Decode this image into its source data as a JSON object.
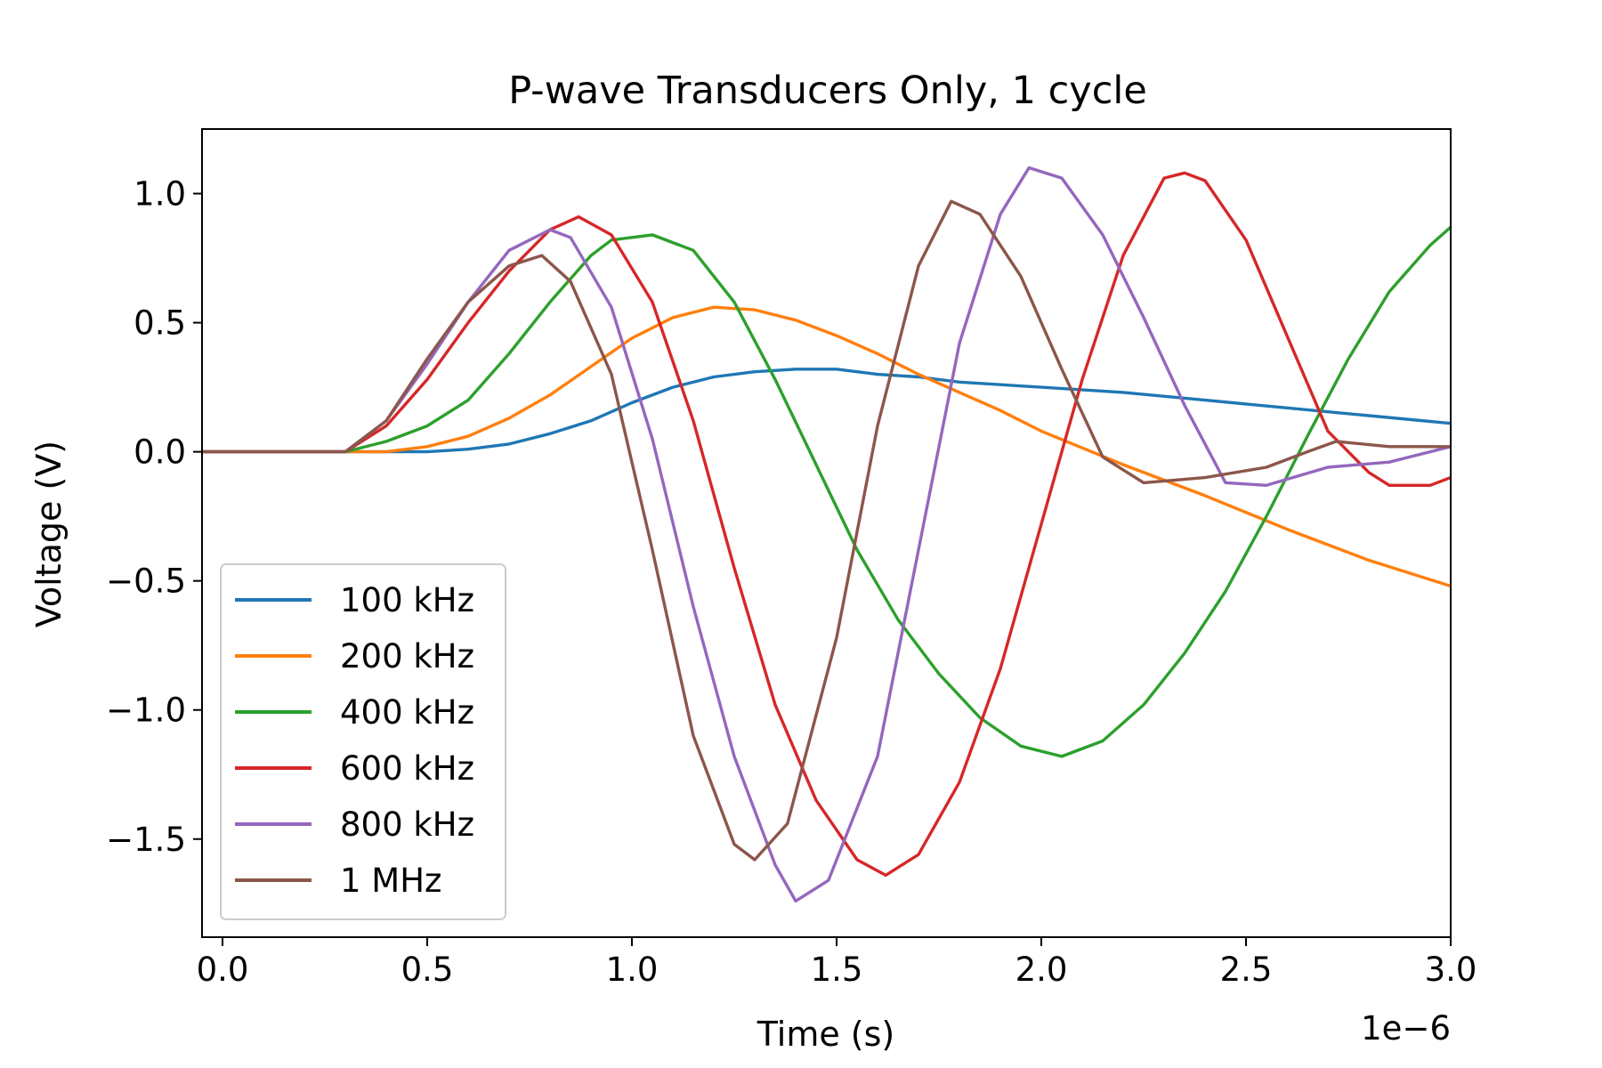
{
  "chart_data": {
    "type": "line",
    "title": "P-wave Transducers Only, 1 cycle",
    "xlabel": "Time (s)",
    "ylabel": "Voltage (V)",
    "x_offset_label": "1e−6",
    "xlim": [
      -0.05,
      3.0
    ],
    "ylim": [
      -1.88,
      1.25
    ],
    "x_ticks": [
      0.0,
      0.5,
      1.0,
      1.5,
      2.0,
      2.5,
      3.0
    ],
    "x_tick_labels": [
      "0.0",
      "0.5",
      "1.0",
      "1.5",
      "2.0",
      "2.5",
      "3.0"
    ],
    "y_ticks": [
      1.0,
      0.5,
      0.0,
      -0.5,
      -1.0,
      -1.5
    ],
    "y_tick_labels": [
      "1.0",
      "0.5",
      "0.0",
      "−0.5",
      "−1.0",
      "−1.5"
    ],
    "grid": false,
    "legend_position": "lower-left",
    "series": [
      {
        "name": "100 kHz",
        "color": "#1f77b4",
        "points": [
          [
            -0.05,
            0.0
          ],
          [
            0.5,
            0.0
          ],
          [
            0.6,
            0.01
          ],
          [
            0.7,
            0.03
          ],
          [
            0.8,
            0.07
          ],
          [
            0.9,
            0.12
          ],
          [
            1.0,
            0.19
          ],
          [
            1.1,
            0.25
          ],
          [
            1.2,
            0.29
          ],
          [
            1.3,
            0.31
          ],
          [
            1.4,
            0.32
          ],
          [
            1.5,
            0.32
          ],
          [
            1.6,
            0.3
          ],
          [
            1.7,
            0.29
          ],
          [
            1.8,
            0.27
          ],
          [
            2.0,
            0.25
          ],
          [
            2.2,
            0.23
          ],
          [
            2.4,
            0.2
          ],
          [
            2.6,
            0.17
          ],
          [
            2.8,
            0.14
          ],
          [
            3.0,
            0.11
          ]
        ]
      },
      {
        "name": "200 kHz",
        "color": "#ff7f0e",
        "points": [
          [
            -0.05,
            0.0
          ],
          [
            0.4,
            0.0
          ],
          [
            0.5,
            0.02
          ],
          [
            0.6,
            0.06
          ],
          [
            0.7,
            0.13
          ],
          [
            0.8,
            0.22
          ],
          [
            0.9,
            0.33
          ],
          [
            1.0,
            0.44
          ],
          [
            1.1,
            0.52
          ],
          [
            1.2,
            0.56
          ],
          [
            1.3,
            0.55
          ],
          [
            1.4,
            0.51
          ],
          [
            1.5,
            0.45
          ],
          [
            1.6,
            0.38
          ],
          [
            1.7,
            0.3
          ],
          [
            1.8,
            0.23
          ],
          [
            1.9,
            0.16
          ],
          [
            2.0,
            0.08
          ],
          [
            2.2,
            -0.05
          ],
          [
            2.4,
            -0.17
          ],
          [
            2.6,
            -0.3
          ],
          [
            2.8,
            -0.42
          ],
          [
            3.0,
            -0.52
          ]
        ]
      },
      {
        "name": "400 kHz",
        "color": "#2ca02c",
        "points": [
          [
            -0.05,
            0.0
          ],
          [
            0.3,
            0.0
          ],
          [
            0.4,
            0.04
          ],
          [
            0.5,
            0.1
          ],
          [
            0.6,
            0.2
          ],
          [
            0.7,
            0.38
          ],
          [
            0.8,
            0.58
          ],
          [
            0.9,
            0.76
          ],
          [
            0.95,
            0.82
          ],
          [
            1.05,
            0.84
          ],
          [
            1.15,
            0.78
          ],
          [
            1.25,
            0.58
          ],
          [
            1.35,
            0.28
          ],
          [
            1.45,
            -0.05
          ],
          [
            1.55,
            -0.38
          ],
          [
            1.65,
            -0.65
          ],
          [
            1.75,
            -0.86
          ],
          [
            1.85,
            -1.03
          ],
          [
            1.95,
            -1.14
          ],
          [
            2.05,
            -1.18
          ],
          [
            2.15,
            -1.12
          ],
          [
            2.25,
            -0.98
          ],
          [
            2.35,
            -0.78
          ],
          [
            2.45,
            -0.54
          ],
          [
            2.55,
            -0.25
          ],
          [
            2.65,
            0.06
          ],
          [
            2.75,
            0.36
          ],
          [
            2.85,
            0.62
          ],
          [
            2.95,
            0.8
          ],
          [
            3.0,
            0.87
          ]
        ]
      },
      {
        "name": "600 kHz",
        "color": "#d62728",
        "points": [
          [
            -0.05,
            0.0
          ],
          [
            0.3,
            0.0
          ],
          [
            0.4,
            0.1
          ],
          [
            0.5,
            0.28
          ],
          [
            0.6,
            0.5
          ],
          [
            0.7,
            0.7
          ],
          [
            0.8,
            0.86
          ],
          [
            0.87,
            0.91
          ],
          [
            0.95,
            0.84
          ],
          [
            1.05,
            0.58
          ],
          [
            1.15,
            0.12
          ],
          [
            1.25,
            -0.45
          ],
          [
            1.35,
            -0.98
          ],
          [
            1.45,
            -1.35
          ],
          [
            1.55,
            -1.58
          ],
          [
            1.62,
            -1.64
          ],
          [
            1.7,
            -1.56
          ],
          [
            1.8,
            -1.28
          ],
          [
            1.9,
            -0.84
          ],
          [
            2.0,
            -0.28
          ],
          [
            2.1,
            0.28
          ],
          [
            2.2,
            0.76
          ],
          [
            2.3,
            1.06
          ],
          [
            2.35,
            1.08
          ],
          [
            2.4,
            1.05
          ],
          [
            2.5,
            0.82
          ],
          [
            2.6,
            0.45
          ],
          [
            2.7,
            0.08
          ],
          [
            2.8,
            -0.08
          ],
          [
            2.85,
            -0.13
          ],
          [
            2.95,
            -0.13
          ],
          [
            3.0,
            -0.1
          ]
        ]
      },
      {
        "name": "800 kHz",
        "color": "#9467bd",
        "points": [
          [
            -0.05,
            0.0
          ],
          [
            0.3,
            0.0
          ],
          [
            0.4,
            0.12
          ],
          [
            0.5,
            0.34
          ],
          [
            0.6,
            0.58
          ],
          [
            0.7,
            0.78
          ],
          [
            0.8,
            0.86
          ],
          [
            0.85,
            0.83
          ],
          [
            0.95,
            0.56
          ],
          [
            1.05,
            0.05
          ],
          [
            1.15,
            -0.6
          ],
          [
            1.25,
            -1.18
          ],
          [
            1.35,
            -1.6
          ],
          [
            1.4,
            -1.74
          ],
          [
            1.48,
            -1.66
          ],
          [
            1.6,
            -1.18
          ],
          [
            1.7,
            -0.38
          ],
          [
            1.8,
            0.42
          ],
          [
            1.9,
            0.92
          ],
          [
            1.97,
            1.1
          ],
          [
            2.05,
            1.06
          ],
          [
            2.15,
            0.84
          ],
          [
            2.25,
            0.52
          ],
          [
            2.35,
            0.18
          ],
          [
            2.45,
            -0.12
          ],
          [
            2.55,
            -0.13
          ],
          [
            2.7,
            -0.06
          ],
          [
            2.85,
            -0.04
          ],
          [
            2.95,
            0.0
          ],
          [
            3.0,
            0.02
          ]
        ]
      },
      {
        "name": "1 MHz",
        "color": "#8c564b",
        "points": [
          [
            -0.05,
            0.0
          ],
          [
            0.3,
            0.0
          ],
          [
            0.4,
            0.12
          ],
          [
            0.5,
            0.36
          ],
          [
            0.6,
            0.58
          ],
          [
            0.7,
            0.72
          ],
          [
            0.78,
            0.76
          ],
          [
            0.85,
            0.66
          ],
          [
            0.95,
            0.3
          ],
          [
            1.05,
            -0.38
          ],
          [
            1.15,
            -1.1
          ],
          [
            1.25,
            -1.52
          ],
          [
            1.3,
            -1.58
          ],
          [
            1.38,
            -1.44
          ],
          [
            1.5,
            -0.72
          ],
          [
            1.6,
            0.1
          ],
          [
            1.7,
            0.72
          ],
          [
            1.78,
            0.97
          ],
          [
            1.85,
            0.92
          ],
          [
            1.95,
            0.68
          ],
          [
            2.05,
            0.32
          ],
          [
            2.15,
            -0.02
          ],
          [
            2.25,
            -0.12
          ],
          [
            2.4,
            -0.1
          ],
          [
            2.55,
            -0.06
          ],
          [
            2.65,
            0.0
          ],
          [
            2.72,
            0.04
          ],
          [
            2.85,
            0.02
          ],
          [
            3.0,
            0.02
          ]
        ]
      }
    ]
  }
}
